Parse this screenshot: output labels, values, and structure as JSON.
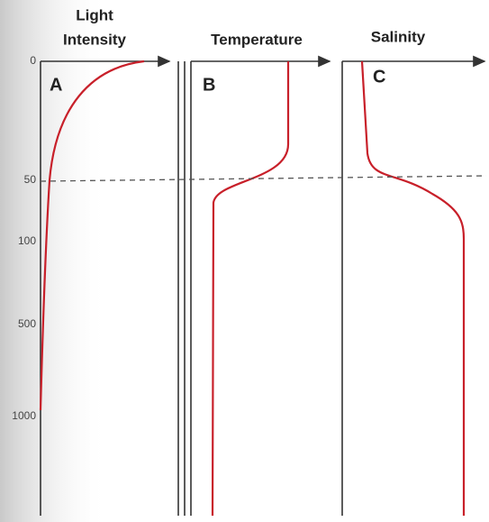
{
  "panels": [
    {
      "title_lines": [
        "Light",
        "Intensity"
      ],
      "letter": "A"
    },
    {
      "title_lines": [
        "Temperature"
      ],
      "letter": "B"
    },
    {
      "title_lines": [
        "Salinity"
      ],
      "letter": "C"
    }
  ],
  "depth_labels": [
    "0",
    "50",
    "100",
    "500",
    "1000"
  ]
}
